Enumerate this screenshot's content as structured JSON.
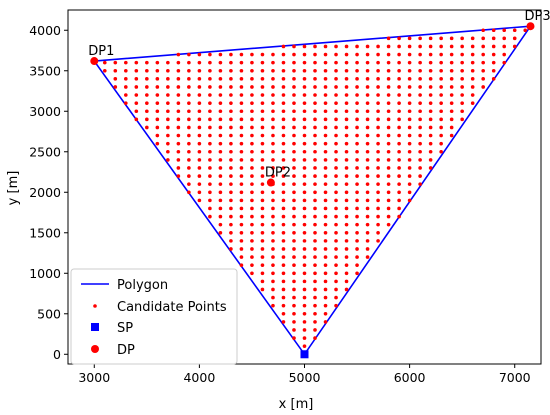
{
  "chart_data": {
    "type": "scatter",
    "xlabel": "x [m]",
    "ylabel": "y [m]",
    "xlim": [
      2750,
      7250
    ],
    "ylim": [
      -120,
      4250
    ],
    "x_ticks": [
      3000,
      4000,
      5000,
      6000,
      7000
    ],
    "y_ticks": [
      0,
      500,
      1000,
      1500,
      2000,
      2500,
      3000,
      3500,
      4000
    ],
    "grid": false,
    "legend_position": "lower-left",
    "polygon": {
      "name": "Polygon",
      "color": "#0000ff",
      "vertices": [
        [
          3000,
          3620
        ],
        [
          7150,
          4050
        ],
        [
          5000,
          0
        ]
      ]
    },
    "candidate_points": {
      "name": "Candidate Points",
      "color": "#ff0000",
      "spacing": 100
    },
    "SP": {
      "name": "SP",
      "color": "#0000ff",
      "x": 5000,
      "y": 0
    },
    "DP": {
      "name": "DP",
      "color": "#ff0000",
      "points": [
        {
          "label": "DP1",
          "x": 3000,
          "y": 3620
        },
        {
          "label": "DP2",
          "x": 4680,
          "y": 2120
        },
        {
          "label": "DP3",
          "x": 7150,
          "y": 4050
        }
      ]
    },
    "legend": [
      "Polygon",
      "Candidate Points",
      "SP",
      "DP"
    ]
  },
  "colors": {
    "polygon": "#0000ff",
    "points": "#ff0000",
    "sp": "#0000ff"
  }
}
